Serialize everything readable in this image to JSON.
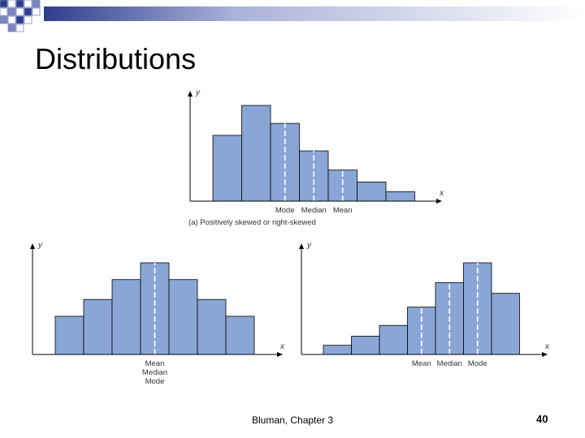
{
  "slide": {
    "title": "Distributions",
    "footer_text": "Bluman, Chapter 3",
    "page_number": "40",
    "colors": {
      "header_dark": "#2e3e8e",
      "header_grid": "#7b86c0",
      "bar_fill": "#8aa6d6",
      "bar_stroke": "#000000",
      "dashed_line": "#ffffff"
    }
  },
  "chart_data": [
    {
      "type": "bar",
      "x_axis_label": "x",
      "y_axis_label": "y",
      "values": [
        5.5,
        8.0,
        6.5,
        4.2,
        2.6,
        1.6,
        0.8
      ],
      "markers": [
        {
          "label": "Mode",
          "position": 2.5
        },
        {
          "label": "Median",
          "position": 3.5
        },
        {
          "label": "Mean",
          "position": 4.5
        }
      ],
      "caption": "(a) Positively skewed or right-skewed"
    },
    {
      "type": "bar",
      "x_axis_label": "x",
      "y_axis_label": "y",
      "values": [
        2.5,
        3.6,
        4.9,
        6.0,
        4.9,
        3.6,
        2.5
      ],
      "markers": [
        {
          "label": "Mean\nMedian\nMode",
          "position": 3.5
        }
      ]
    },
    {
      "type": "bar",
      "x_axis_label": "x",
      "y_axis_label": "y",
      "values": [
        0.6,
        1.2,
        1.9,
        3.1,
        4.7,
        6.0,
        4.0
      ],
      "markers": [
        {
          "label": "Mean",
          "position": 3.5
        },
        {
          "label": "Median",
          "position": 4.5
        },
        {
          "label": "Mode",
          "position": 5.5
        }
      ]
    }
  ]
}
